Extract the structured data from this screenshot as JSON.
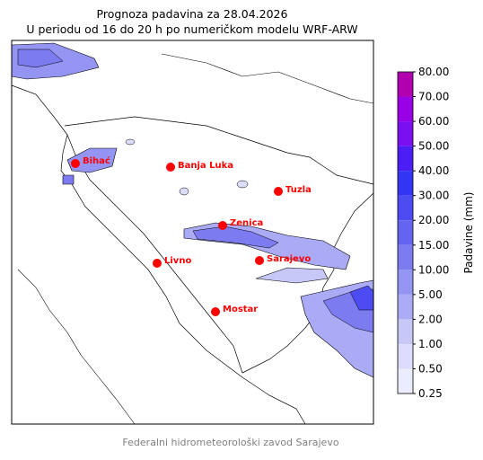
{
  "header": {
    "title": "Prognoza padavina za 28.04.2026",
    "subtitle": "U periodu od 16 do 20 h po numeričkom modelu WRF-ARW"
  },
  "cities": [
    "Bihać",
    "Banja Luka",
    "Tuzla",
    "Zenica",
    "Livno",
    "Sarajevo",
    "Mostar"
  ],
  "colorbar": {
    "label": "Padavine (mm)",
    "ticks": [
      "0.25",
      "0.50",
      "1.00",
      "2.00",
      "5.00",
      "10.00",
      "15.00",
      "20.00",
      "30.00",
      "40.00",
      "50.00",
      "60.00",
      "70.00",
      "80.00"
    ],
    "colors": [
      "#ececff",
      "#dcdcfc",
      "#c8c8f8",
      "#acacf6",
      "#9494f2",
      "#7c7cf0",
      "#6464f0",
      "#4c4cf2",
      "#3434f5",
      "#4a1ef5",
      "#7a0ff2",
      "#9a00e6",
      "#b000b0"
    ]
  },
  "footer": "Federalni hidrometeorološki zavod Sarajevo"
}
